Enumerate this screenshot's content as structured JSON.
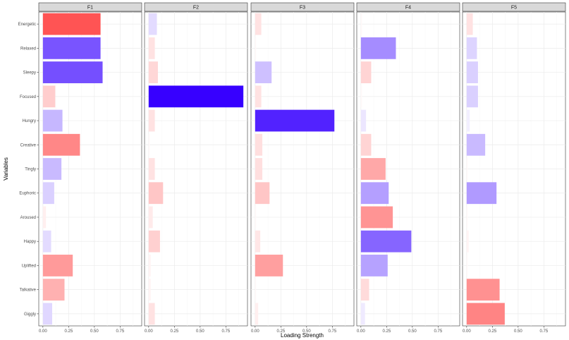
{
  "chart_data": {
    "type": "bar",
    "orientation": "horizontal",
    "facets": [
      "F1",
      "F2",
      "F3",
      "F4",
      "F5"
    ],
    "categories": [
      "Energetic",
      "Relaxed",
      "Sleepy",
      "Focused",
      "Hungry",
      "Creative",
      "Tingly",
      "Euphoric",
      "Aroused",
      "Happy",
      "Uplifted",
      "Talkative",
      "Giggly"
    ],
    "series": [
      {
        "facet": "F1",
        "values": [
          0.56,
          0.56,
          0.58,
          0.12,
          0.19,
          0.36,
          0.18,
          0.11,
          0.03,
          0.08,
          0.29,
          0.21,
          0.09
        ],
        "signs": [
          "+",
          "-",
          "-",
          "+",
          "-",
          "+",
          "-",
          "-",
          "+",
          "-",
          "+",
          "+",
          "-"
        ]
      },
      {
        "facet": "F2",
        "values": [
          0.08,
          0.06,
          0.09,
          0.92,
          0.06,
          0.01,
          0.06,
          0.14,
          0.04,
          0.11,
          0.02,
          0.02,
          0.06
        ],
        "signs": [
          "-",
          "+",
          "+",
          "-",
          "+",
          "+",
          "+",
          "+",
          "+",
          "+",
          "+",
          "+",
          "+"
        ]
      },
      {
        "facet": "F3",
        "values": [
          0.06,
          0.01,
          0.16,
          0.06,
          0.77,
          0.07,
          0.07,
          0.14,
          0.01,
          0.05,
          0.27,
          0.01,
          0.03
        ],
        "signs": [
          "+",
          "+",
          "-",
          "+",
          "-",
          "+",
          "+",
          "+",
          "+",
          "+",
          "+",
          "+",
          "+"
        ]
      },
      {
        "facet": "F4",
        "values": [
          0.01,
          0.34,
          0.1,
          0.01,
          0.05,
          0.1,
          0.24,
          0.27,
          0.31,
          0.49,
          0.26,
          0.08,
          0.04
        ],
        "signs": [
          "+",
          "-",
          "+",
          "+",
          "-",
          "+",
          "+",
          "-",
          "+",
          "-",
          "-",
          "+",
          "-"
        ]
      },
      {
        "facet": "F5",
        "values": [
          0.06,
          0.1,
          0.11,
          0.11,
          0.03,
          0.18,
          0.01,
          0.29,
          0.01,
          0.02,
          0.01,
          0.32,
          0.37
        ],
        "signs": [
          "+",
          "-",
          "-",
          "-",
          "-",
          "-",
          "+",
          "-",
          "+",
          "+",
          "+",
          "+",
          "+"
        ]
      }
    ],
    "fill_scale": {
      "negative": "#0000ff",
      "zero": "#ffffff",
      "positive": "#ff0000",
      "midpoint": 0
    },
    "xlabel": "Loading Strength",
    "ylabel": "Variables",
    "xlim": [
      -0.04,
      0.96
    ],
    "xticks": [
      0.0,
      0.25,
      0.5,
      0.75
    ],
    "xtick_labels": [
      "0.00",
      "0.25",
      "0.50",
      "0.75"
    ],
    "grid": true,
    "legend": "none"
  }
}
